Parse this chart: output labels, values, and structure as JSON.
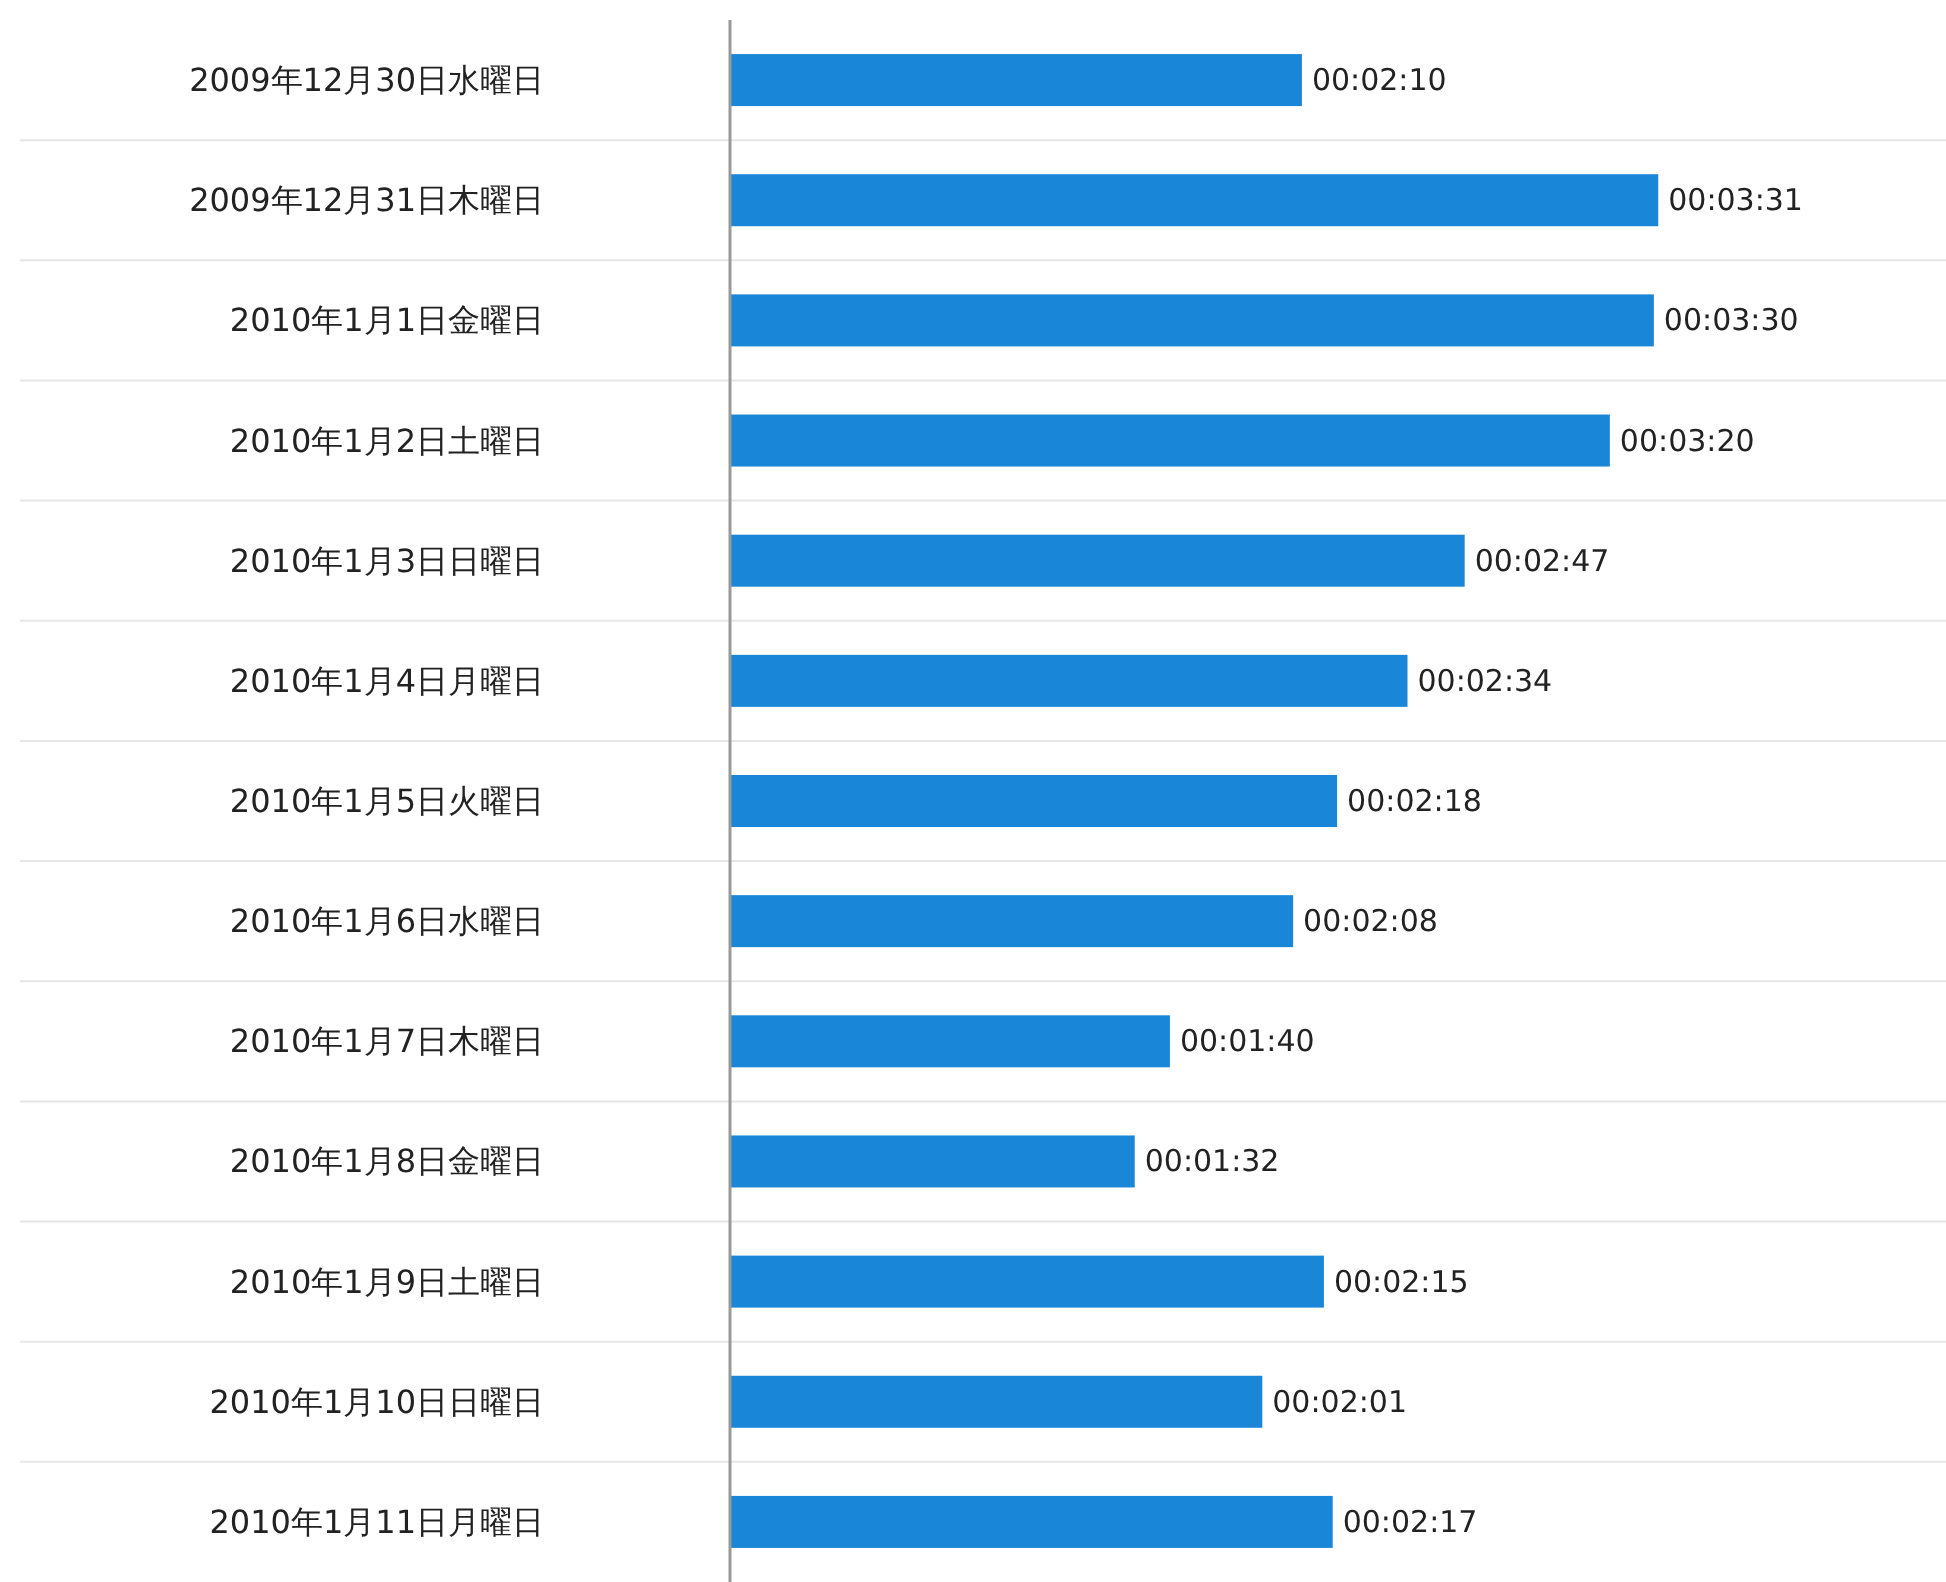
{
  "chart_data": {
    "type": "bar",
    "orientation": "horizontal",
    "categories": [
      "2009年12月30日水曜日",
      "2009年12月31日木曜日",
      "2010年1月1日金曜日",
      "2010年1月2日土曜日",
      "2010年1月3日日曜日",
      "2010年1月4日月曜日",
      "2010年1月5日火曜日",
      "2010年1月6日水曜日",
      "2010年1月7日木曜日",
      "2010年1月8日金曜日",
      "2010年1月9日土曜日",
      "2010年1月10日日曜日",
      "2010年1月11日月曜日"
    ],
    "values": [
      130,
      211,
      210,
      200,
      167,
      154,
      138,
      128,
      100,
      92,
      135,
      121,
      137
    ],
    "value_labels": [
      "00:02:10",
      "00:03:31",
      "00:03:30",
      "00:03:20",
      "00:02:47",
      "00:02:34",
      "00:02:18",
      "00:02:08",
      "00:01:40",
      "00:01:32",
      "00:02:15",
      "00:02:01",
      "00:02:17"
    ],
    "color": "#1a86d8",
    "grid": "y"
  }
}
